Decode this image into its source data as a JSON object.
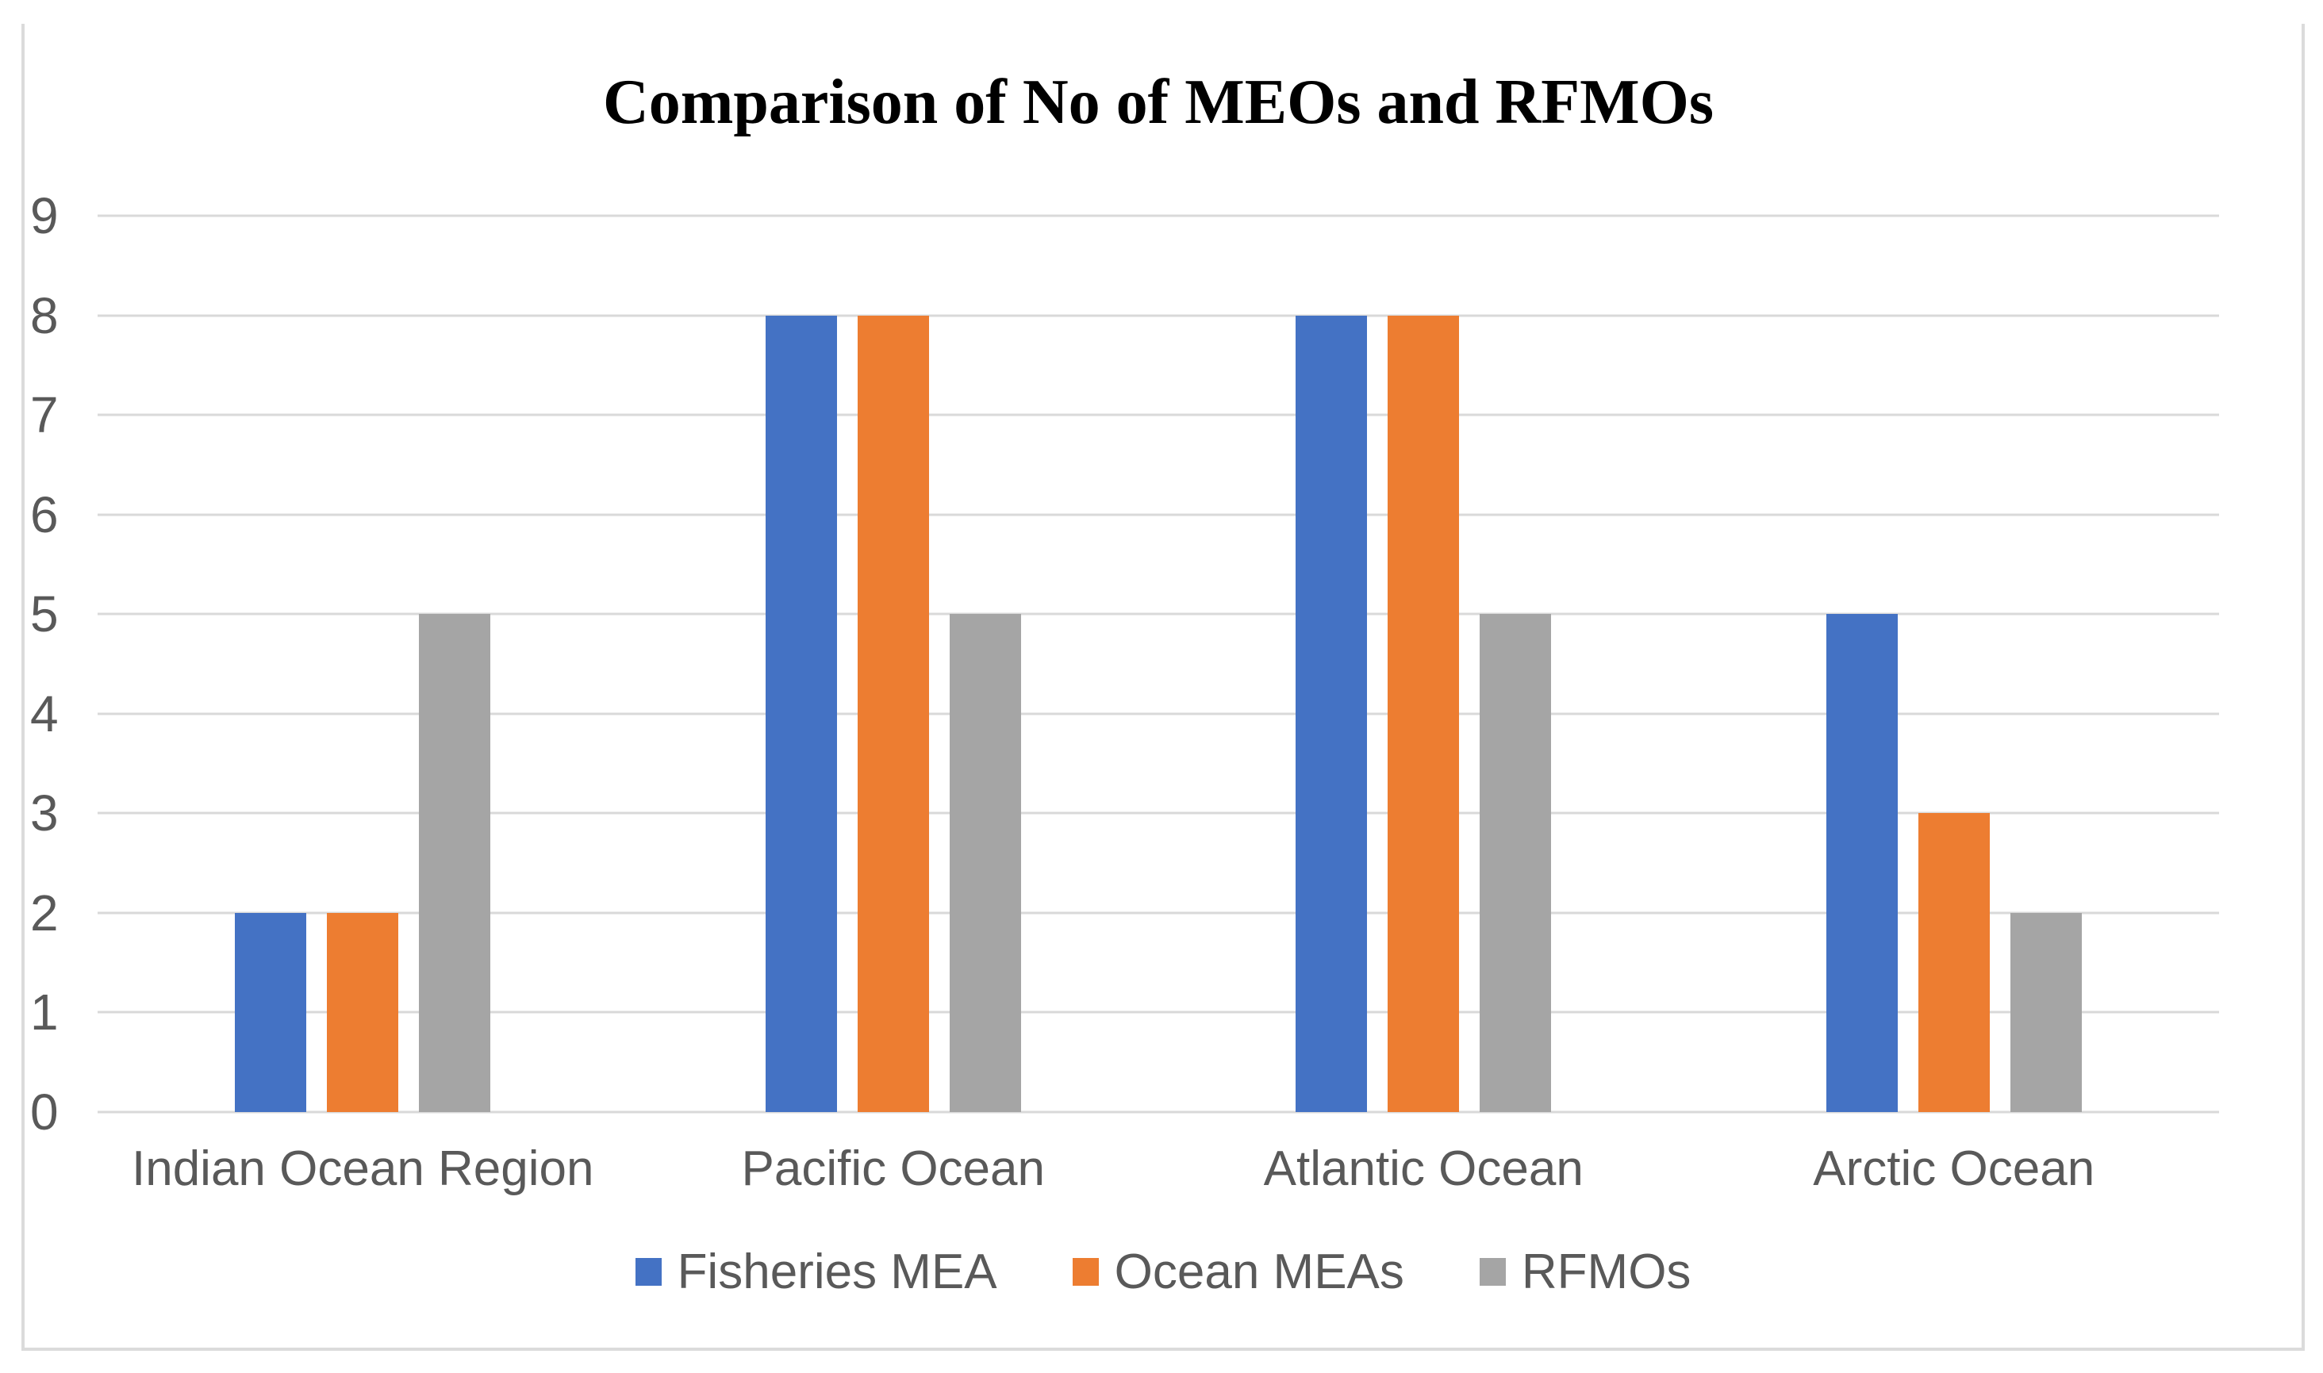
{
  "chart_data": {
    "type": "bar",
    "title": "Comparison of No of MEOs and RFMOs",
    "categories": [
      "Indian Ocean Region",
      "Pacific Ocean",
      "Atlantic Ocean",
      "Arctic Ocean"
    ],
    "series": [
      {
        "name": "Fisheries MEA",
        "color": "#4472C4",
        "values": [
          2,
          8,
          8,
          5
        ]
      },
      {
        "name": "Ocean MEAs",
        "color": "#ED7D31",
        "values": [
          2,
          8,
          8,
          3
        ]
      },
      {
        "name": "RFMOs",
        "color": "#A5A5A5",
        "values": [
          5,
          5,
          5,
          2
        ]
      }
    ],
    "y_axis": {
      "min": 0,
      "max": 9,
      "step": 1,
      "ticks": [
        0,
        1,
        2,
        3,
        4,
        5,
        6,
        7,
        8,
        9
      ]
    },
    "xlabel": "",
    "ylabel": "",
    "grid": true,
    "legend": {
      "position": "bottom"
    },
    "style": {
      "background": "#FFFFFF",
      "title_color": "#000000",
      "axis_text_color": "#595959",
      "gridline_color": "#D9D9D9",
      "frame_border_color": "#DBDBDB"
    }
  }
}
